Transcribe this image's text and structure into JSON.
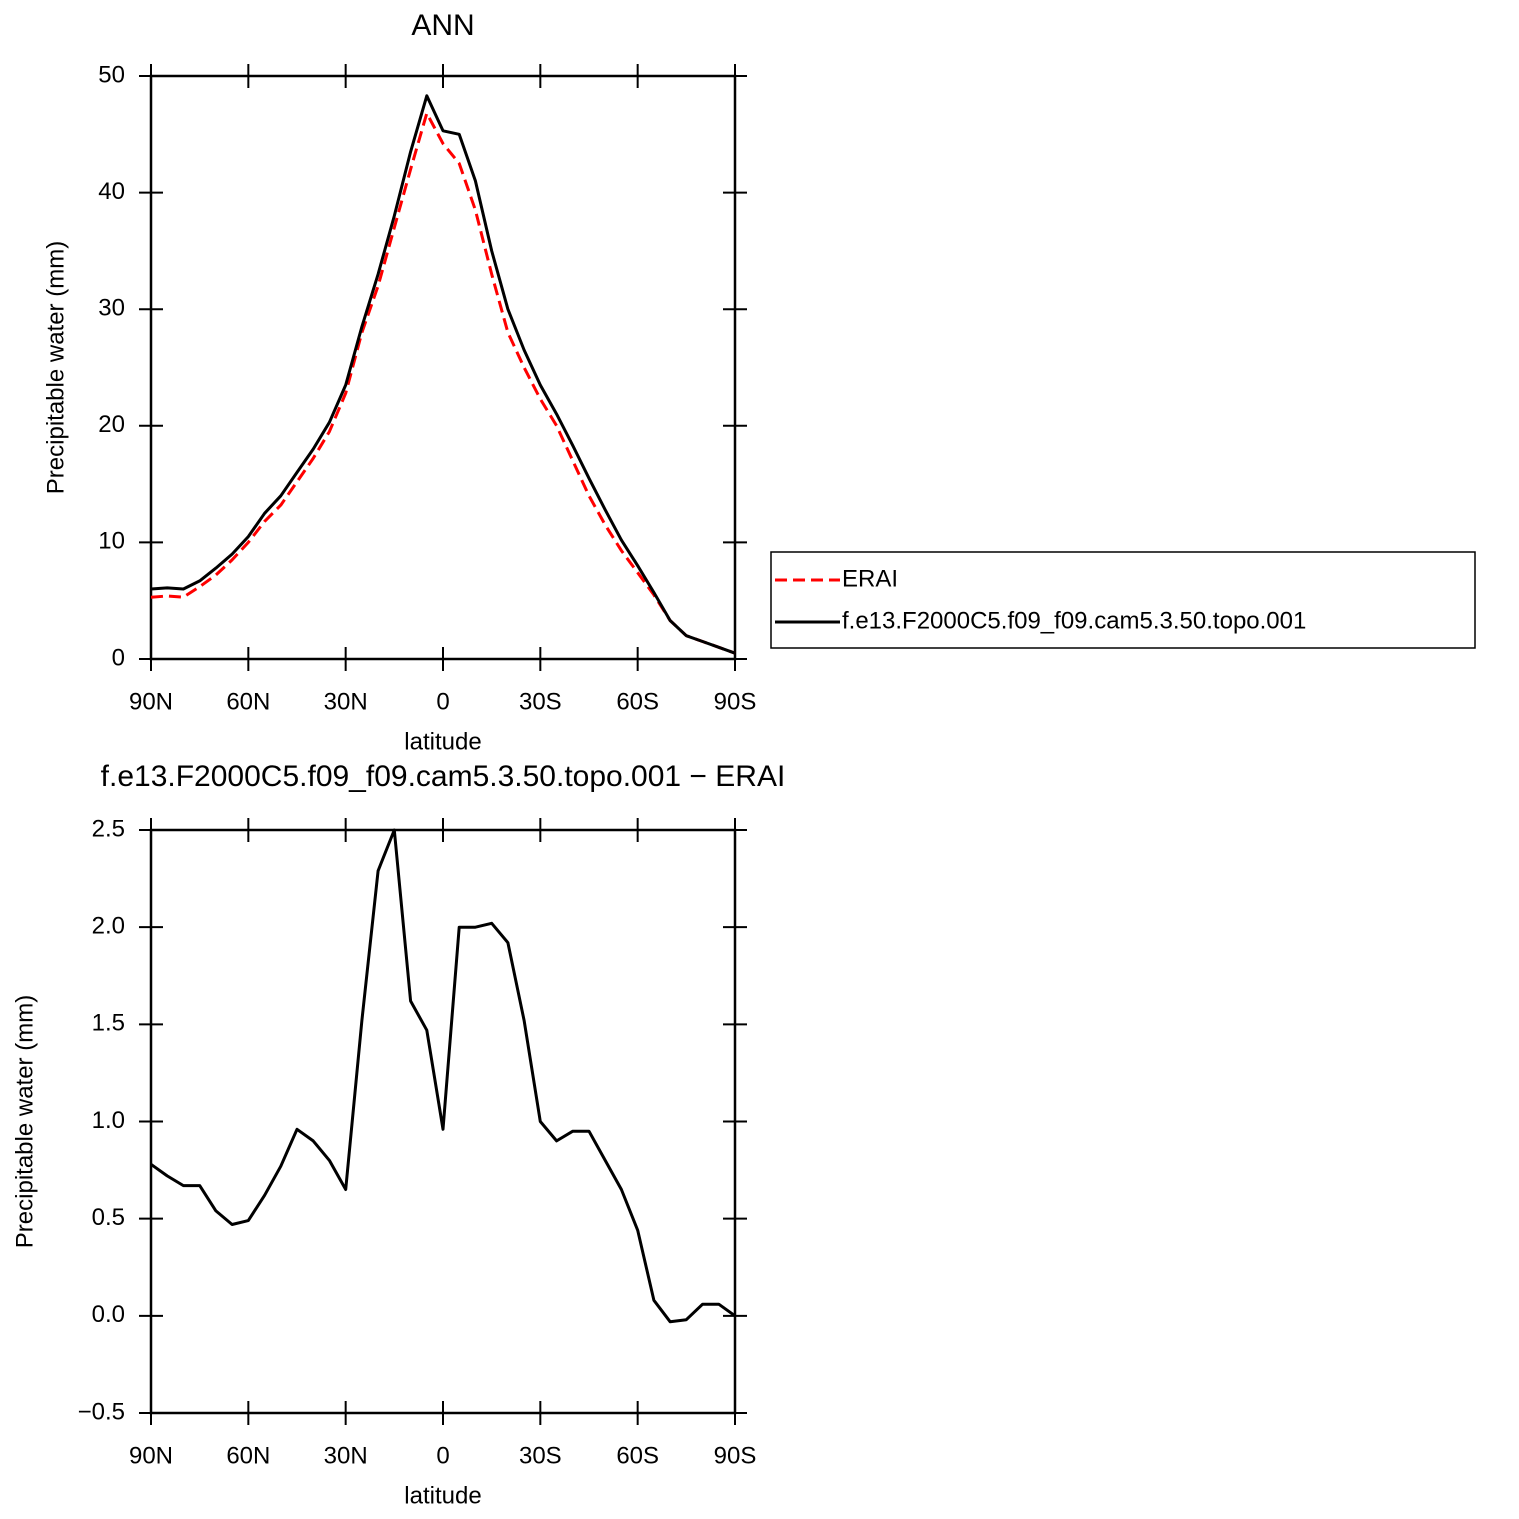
{
  "chart_data": [
    {
      "type": "line",
      "title": "ANN",
      "xlabel": "latitude",
      "ylabel": "Precipitable water (mm)",
      "x": [
        90,
        85,
        80,
        75,
        70,
        65,
        60,
        55,
        50,
        45,
        40,
        35,
        30,
        25,
        20,
        15,
        10,
        5,
        0,
        -5,
        -10,
        -15,
        -20,
        -25,
        -30,
        -35,
        -40,
        -45,
        -50,
        -55,
        -60,
        -65,
        -70,
        -75,
        -80,
        -85,
        -90
      ],
      "xlim": [
        90,
        -90
      ],
      "xticks": [
        {
          "value": 90,
          "label": "90N"
        },
        {
          "value": 60,
          "label": "60N"
        },
        {
          "value": 30,
          "label": "30N"
        },
        0,
        {
          "value": -30,
          "label": "30S"
        },
        {
          "value": -60,
          "label": "60S"
        },
        {
          "value": -90,
          "label": "90S"
        }
      ],
      "ylim": [
        0,
        50
      ],
      "yticks": [
        0,
        10,
        20,
        30,
        40,
        50
      ],
      "legend": "right",
      "series": [
        {
          "name": "ERAI",
          "color": "#ff0000",
          "line_style": "dashed",
          "values": [
            5.3,
            5.4,
            5.3,
            6.2,
            7.2,
            8.5,
            10,
            11.8,
            13.2,
            15.2,
            17.2,
            19.5,
            22.8,
            28,
            32,
            37,
            42,
            46.8,
            44.2,
            42.5,
            38.5,
            33,
            28,
            25,
            22.3,
            20,
            17,
            14,
            11.5,
            9.3,
            7.4,
            5.5,
            3.3,
            2.0,
            1.5,
            1.0,
            0.5
          ]
        },
        {
          "name": "f.e13.F2000C5.f09_f09.cam5.3.50.topo.001",
          "color": "#000000",
          "line_style": "solid",
          "values": [
            6.0,
            6.1,
            6.0,
            6.7,
            7.8,
            9.0,
            10.5,
            12.5,
            14.0,
            16.0,
            18.0,
            20.3,
            23.5,
            28.5,
            33,
            38,
            43.5,
            48.3,
            45.3,
            45,
            41,
            35,
            30,
            26.5,
            23.5,
            21,
            18.3,
            15.5,
            12.8,
            10.2,
            8,
            5.7,
            3.3,
            2,
            1.5,
            1.0,
            0.5
          ]
        }
      ]
    },
    {
      "type": "line",
      "title": "f.e13.F2000C5.f09_f09.cam5.3.50.topo.001  −  ERAI",
      "xlabel": "latitude",
      "ylabel": "Precipitable water (mm)",
      "x": [
        90,
        85,
        80,
        75,
        70,
        65,
        60,
        55,
        50,
        45,
        40,
        35,
        30,
        25,
        20,
        15,
        10,
        5,
        0,
        -5,
        -10,
        -15,
        -20,
        -25,
        -30,
        -35,
        -40,
        -45,
        -50,
        -55,
        -60,
        -65,
        -70,
        -75,
        -80,
        -85,
        -90
      ],
      "xlim": [
        90,
        -90
      ],
      "xticks": [
        {
          "value": 90,
          "label": "90N"
        },
        {
          "value": 60,
          "label": "60N"
        },
        {
          "value": 30,
          "label": "30N"
        },
        0,
        {
          "value": -30,
          "label": "30S"
        },
        {
          "value": -60,
          "label": "60S"
        },
        {
          "value": -90,
          "label": "90S"
        }
      ],
      "ylim": [
        -0.5,
        2.5
      ],
      "yticks": [
        {
          "value": -0.5,
          "label": "−0.5"
        },
        {
          "value": 0,
          "label": "0.0"
        },
        0.5,
        {
          "value": 1,
          "label": "1.0"
        },
        1.5,
        {
          "value": 2,
          "label": "2.0"
        },
        2.5
      ],
      "series": [
        {
          "color": "#000000",
          "line_style": "solid",
          "values": [
            0.78,
            0.72,
            0.67,
            0.67,
            0.54,
            0.47,
            0.49,
            0.62,
            0.77,
            0.96,
            0.9,
            0.8,
            0.65,
            1.52,
            2.29,
            2.5,
            1.62,
            1.47,
            0.96,
            2.0,
            2.0,
            2.02,
            1.92,
            1.52,
            1.0,
            0.9,
            0.95,
            0.95,
            0.8,
            0.65,
            0.44,
            0.08,
            -0.03,
            -0.02,
            0.06,
            0.06,
            0.0
          ]
        }
      ]
    }
  ]
}
